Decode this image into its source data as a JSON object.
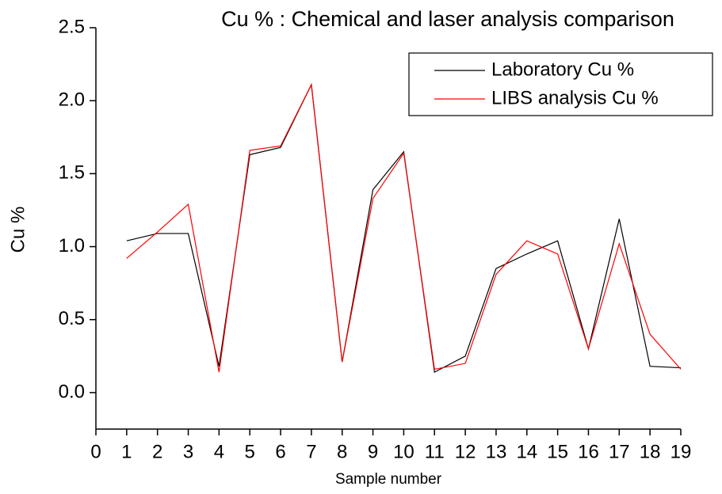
{
  "chart_data": {
    "type": "line",
    "title": "Cu % : Chemical and laser analysis comparison",
    "x_label": "Sample number",
    "y_label": "Cu %",
    "x": [
      1,
      2,
      3,
      4,
      5,
      6,
      7,
      8,
      9,
      10,
      11,
      12,
      13,
      14,
      15,
      16,
      17,
      18,
      19
    ],
    "series": [
      {
        "name": "Laboratory Cu %",
        "color": "#000000",
        "values": [
          1.04,
          1.09,
          1.09,
          0.18,
          1.63,
          1.68,
          2.11,
          0.21,
          1.39,
          1.65,
          0.14,
          0.25,
          0.85,
          0.95,
          1.04,
          0.3,
          1.19,
          0.18,
          0.17
        ]
      },
      {
        "name": "LIBS analysis Cu %",
        "color": "#ff0000",
        "values": [
          0.92,
          1.1,
          1.29,
          0.14,
          1.66,
          1.69,
          2.11,
          0.21,
          1.33,
          1.64,
          0.16,
          0.2,
          0.81,
          1.04,
          0.95,
          0.3,
          1.02,
          0.4,
          0.16
        ]
      }
    ],
    "xlim": [
      0,
      19
    ],
    "xticks": [
      0,
      1,
      2,
      3,
      4,
      5,
      6,
      7,
      8,
      9,
      10,
      11,
      12,
      13,
      14,
      15,
      16,
      17,
      18,
      19
    ],
    "ylim": [
      -0.25,
      2.5
    ],
    "yticks": [
      {
        "value": 0,
        "label": "0.0"
      },
      0.5,
      {
        "value": 1,
        "label": "1.0"
      },
      1.5,
      {
        "value": 2,
        "label": "2.0"
      },
      2.5
    ],
    "legend": "top-right"
  }
}
